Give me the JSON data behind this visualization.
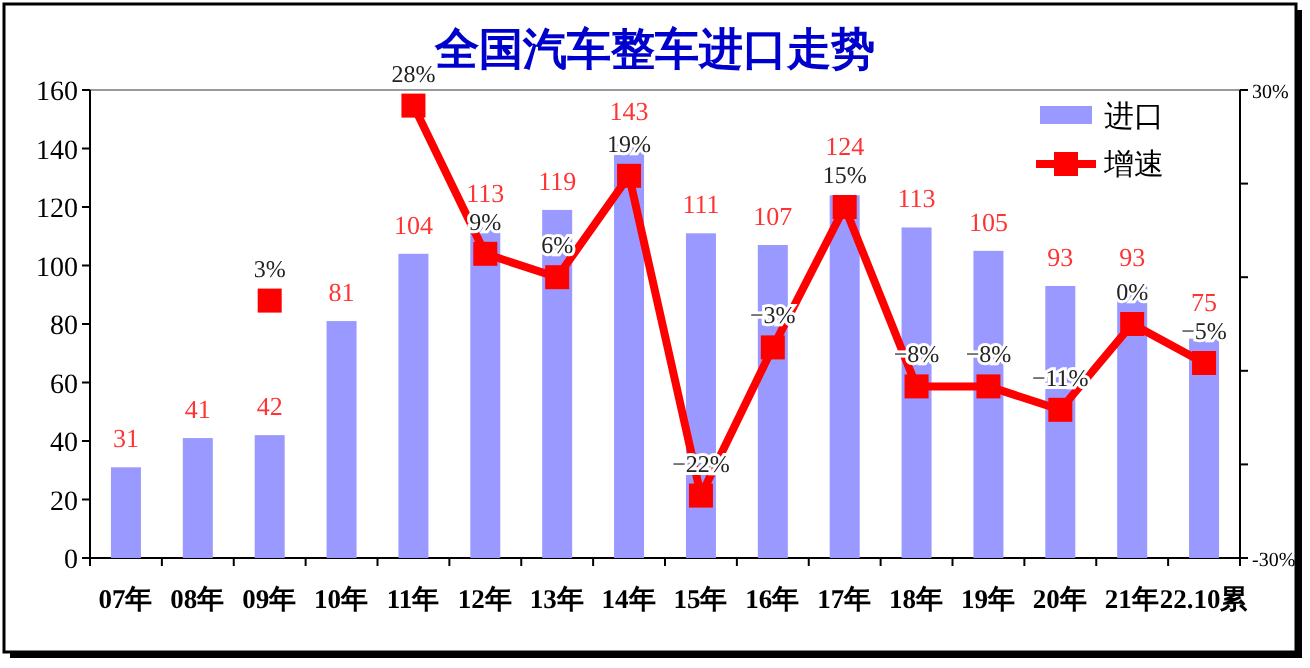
{
  "chart_data": {
    "type": "bar",
    "title": "全国汽车整车进口走势",
    "categories": [
      "07年",
      "08年",
      "09年",
      "10年",
      "11年",
      "12年",
      "13年",
      "14年",
      "15年",
      "16年",
      "17年",
      "18年",
      "19年",
      "20年",
      "21年",
      "22.10累"
    ],
    "series": [
      {
        "name": "进口",
        "color": "#9999ff",
        "values": [
          31,
          41,
          42,
          81,
          104,
          113,
          119,
          143,
          111,
          107,
          124,
          113,
          105,
          93,
          93,
          75
        ],
        "value_labels": [
          "31",
          "41",
          "42",
          "81",
          "104",
          "113",
          "119",
          "143",
          "111",
          "107",
          "124",
          "113",
          "105",
          "93",
          "93",
          "75"
        ]
      },
      {
        "name": "增速",
        "type": "line",
        "axis": "y2",
        "color": "#ff0000",
        "marker": "square",
        "values": [
          null,
          null,
          3,
          null,
          28,
          9,
          6,
          19,
          -22,
          -3,
          15,
          -8,
          -8,
          -11,
          0,
          -5
        ],
        "value_labels": [
          null,
          null,
          "3%",
          null,
          "28%",
          "9%",
          "6%",
          "19%",
          "−22%",
          "−3%",
          "15%",
          "−8%",
          "−8%",
          "−11%",
          "0%",
          "−5%"
        ]
      }
    ],
    "ylim": [
      0,
      160
    ],
    "yticks": [
      0,
      20,
      40,
      60,
      80,
      100,
      120,
      140,
      160
    ],
    "y2lim": [
      -30,
      30
    ],
    "y2ticks": [
      {
        "value": -30,
        "label": "-30%"
      },
      {
        "value": -18,
        "label": null
      },
      {
        "value": -6,
        "label": null
      },
      {
        "value": 6,
        "label": null
      },
      {
        "value": 18,
        "label": null
      },
      {
        "value": 30,
        "label": "30%"
      }
    ],
    "legend": "top right",
    "grid": false
  }
}
